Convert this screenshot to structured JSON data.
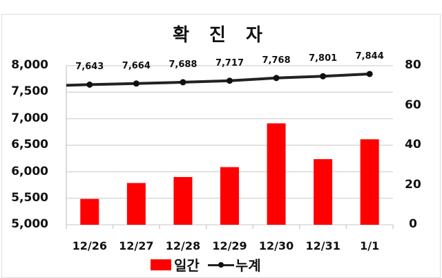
{
  "chart_data": {
    "type": "bar+line",
    "title": "확 진 자",
    "categories": [
      "12/26",
      "12/27",
      "12/28",
      "12/29",
      "12/30",
      "12/31",
      "1/1"
    ],
    "series": [
      {
        "name": "일간",
        "type": "bar",
        "axis": "right",
        "color": "#ff0000",
        "values": [
          13,
          21,
          24,
          29,
          51,
          33,
          43
        ]
      },
      {
        "name": "누계",
        "type": "line",
        "axis": "left",
        "color": "#222222",
        "values": [
          7643,
          7664,
          7688,
          7717,
          7768,
          7801,
          7844
        ],
        "data_labels": [
          "7,643",
          "7,664",
          "7,688",
          "7,717",
          "7,768",
          "7,801",
          "7,844"
        ]
      }
    ],
    "left_axis": {
      "ylim": [
        5000,
        8000
      ],
      "ticks": [
        "8,000",
        "7,500",
        "7,000",
        "6,500",
        "6,000",
        "5,500",
        "5,000"
      ]
    },
    "right_axis": {
      "ylim": [
        0,
        80
      ],
      "ticks": [
        "80",
        "60",
        "40",
        "20",
        "0"
      ]
    },
    "grid": true,
    "legend_position": "bottom",
    "xlabel": "",
    "ylabel": ""
  },
  "legend": {
    "bar_label": "일간",
    "line_label": "누계"
  }
}
